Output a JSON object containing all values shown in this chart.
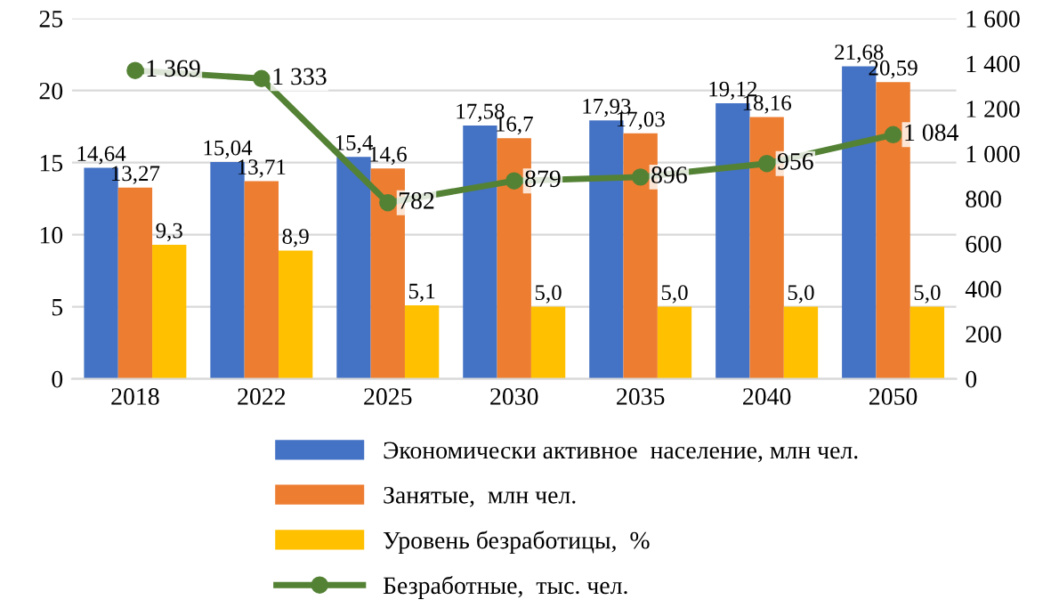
{
  "chart_data": {
    "type": "bar",
    "categories": [
      "2018",
      "2022",
      "2025",
      "2030",
      "2035",
      "2040",
      "2050"
    ],
    "series": [
      {
        "name": "Экономически активное  население, млн чел.",
        "color": "#4472c4",
        "values": [
          14.64,
          15.04,
          15.4,
          17.58,
          17.93,
          19.12,
          21.68
        ],
        "value_labels": [
          "14,64",
          "15,04",
          "15,4",
          "17,58",
          "17,93",
          "19,12",
          "21,68"
        ]
      },
      {
        "name": "Занятые,  млн чел.",
        "color": "#ed7d31",
        "values": [
          13.27,
          13.71,
          14.6,
          16.7,
          17.03,
          18.16,
          20.59
        ],
        "value_labels": [
          "13,27",
          "13,71",
          "14,6",
          "16,7",
          "17,03",
          "18,16",
          "20,59"
        ]
      },
      {
        "name": "Уровень безработицы,  %",
        "color": "#ffc000",
        "values": [
          9.3,
          8.9,
          5.1,
          5.0,
          5.0,
          5.0,
          5.0
        ],
        "value_labels": [
          "9,3",
          "8,9",
          "5,1",
          "5,0",
          "5,0",
          "5,0",
          "5,0"
        ]
      },
      {
        "name": "Безработные,  тыс. чел.",
        "type": "line",
        "axis": "y2",
        "color": "#548235",
        "marker": "circle",
        "values": [
          1369,
          1333,
          782,
          879,
          896,
          956,
          1084
        ],
        "value_labels": [
          "1 369",
          "1 333",
          "782",
          "879",
          "896",
          "956",
          "1 084"
        ]
      }
    ],
    "ylim": [
      0,
      25
    ],
    "yticks": [
      0,
      5,
      10,
      15,
      20,
      25
    ],
    "y2lim": [
      0,
      1600
    ],
    "y2ticks": [
      0,
      200,
      400,
      600,
      800,
      {
        "value": 1000,
        "label": "1 000"
      },
      {
        "value": 1200,
        "label": "1 200"
      },
      {
        "value": 1400,
        "label": "1 400"
      },
      {
        "value": 1600,
        "label": "1 600"
      }
    ],
    "grid": "y",
    "legend": "bottom"
  }
}
